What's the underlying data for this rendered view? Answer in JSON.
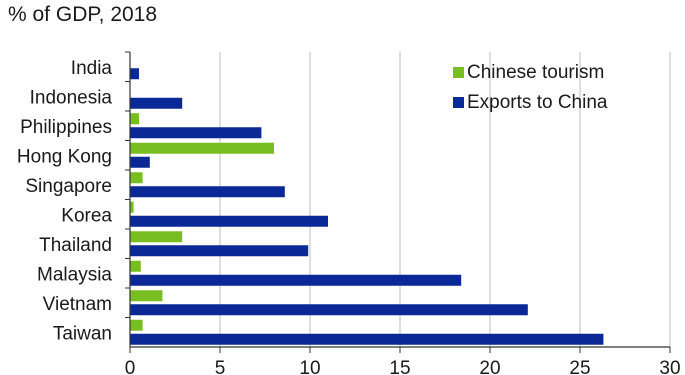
{
  "chart_data": {
    "type": "bar",
    "orientation": "horizontal",
    "title": "",
    "subtitle": "% of GDP, 2018",
    "xlabel": "",
    "ylabel": "",
    "xlim": [
      0,
      30
    ],
    "xticks": [
      0,
      5,
      10,
      15,
      20,
      25,
      30
    ],
    "grid": "vertical",
    "legend_position": "top-right",
    "categories": [
      "India",
      "Indonesia",
      "Philippines",
      "Hong Kong",
      "Singapore",
      "Korea",
      "Thailand",
      "Malaysia",
      "Vietnam",
      "Taiwan"
    ],
    "series": [
      {
        "name": "Chinese tourism",
        "color": "#78be21",
        "values": [
          0.0,
          0.0,
          0.5,
          8.0,
          0.7,
          0.2,
          2.9,
          0.6,
          1.8,
          0.7
        ]
      },
      {
        "name": "Exports to China",
        "color": "#0a2896",
        "values": [
          0.5,
          2.9,
          7.3,
          1.1,
          8.6,
          11.0,
          9.9,
          18.4,
          22.1,
          26.3
        ]
      }
    ]
  }
}
